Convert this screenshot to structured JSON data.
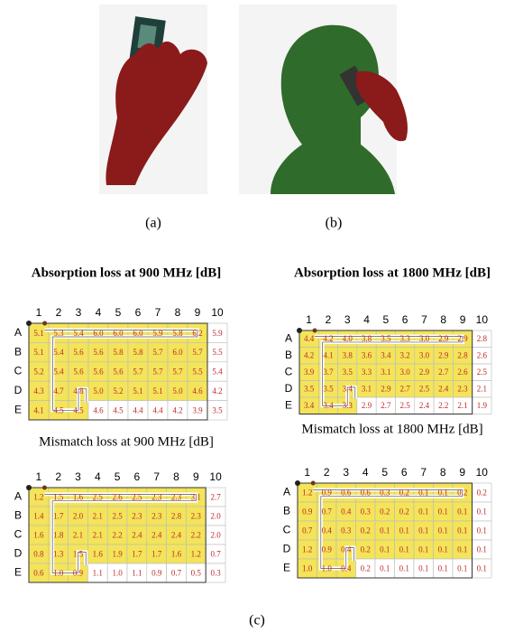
{
  "figure": {
    "panels": [
      {
        "label": "(a)"
      },
      {
        "label": "(b)"
      }
    ],
    "caption": "(c)"
  },
  "tables": [
    {
      "title": "Absorption loss at 900 MHz [dB]",
      "columns": [
        "1",
        "2",
        "3",
        "4",
        "5",
        "6",
        "7",
        "8",
        "9",
        "10"
      ],
      "rows": [
        {
          "label": "A",
          "cells": [
            "5.1",
            "5.3",
            "5.4",
            "6.0",
            "6.0",
            "6.0",
            "5.9",
            "5.8",
            "6.2",
            "5.9"
          ]
        },
        {
          "label": "B",
          "cells": [
            "5.1",
            "5.4",
            "5.6",
            "5.6",
            "5.8",
            "5.8",
            "5.7",
            "6.0",
            "5.7",
            "5.5"
          ]
        },
        {
          "label": "C",
          "cells": [
            "5.2",
            "5.4",
            "5.6",
            "5.6",
            "5.6",
            "5.7",
            "5.7",
            "5.7",
            "5.5",
            "5.4"
          ]
        },
        {
          "label": "D",
          "cells": [
            "4.3",
            "4.7",
            "4.8",
            "5.0",
            "5.2",
            "5.1",
            "5.1",
            "5.0",
            "4.6",
            "4.2"
          ]
        },
        {
          "label": "E",
          "cells": [
            "4.1",
            "4.5",
            "4.5",
            "4.6",
            "4.5",
            "4.4",
            "4.4",
            "4.2",
            "3.9",
            "3.5"
          ]
        }
      ]
    },
    {
      "title": "Absorption loss at 1800 MHz [dB]",
      "columns": [
        "1",
        "2",
        "3",
        "4",
        "5",
        "6",
        "7",
        "8",
        "9",
        "10"
      ],
      "rows": [
        {
          "label": "A",
          "cells": [
            "4.4",
            "4.2",
            "4.0",
            "3.8",
            "3.5",
            "3.3",
            "3.0",
            "2.9",
            "2.9",
            "2.8"
          ]
        },
        {
          "label": "B",
          "cells": [
            "4.2",
            "4.1",
            "3.8",
            "3.6",
            "3.4",
            "3.2",
            "3.0",
            "2.9",
            "2.8",
            "2.6"
          ]
        },
        {
          "label": "C",
          "cells": [
            "3.9",
            "3.7",
            "3.5",
            "3.3",
            "3.1",
            "3.0",
            "2.9",
            "2.7",
            "2.6",
            "2.5"
          ]
        },
        {
          "label": "D",
          "cells": [
            "3.5",
            "3.5",
            "3.4",
            "3.1",
            "2.9",
            "2.7",
            "2.5",
            "2.4",
            "2.3",
            "2.1"
          ]
        },
        {
          "label": "E",
          "cells": [
            "3.4",
            "3.4",
            "3.3",
            "2.9",
            "2.7",
            "2.5",
            "2.4",
            "2.2",
            "2.1",
            "1.9"
          ]
        }
      ]
    },
    {
      "title": "Mismatch loss at 900 MHz [dB]",
      "columns": [
        "1",
        "2",
        "3",
        "4",
        "5",
        "6",
        "7",
        "8",
        "9",
        "10"
      ],
      "rows": [
        {
          "label": "A",
          "cells": [
            "1.2",
            "1.5",
            "1.6",
            "2.5",
            "2.6",
            "2.5",
            "2.3",
            "2.3",
            "3.1",
            "2.7"
          ]
        },
        {
          "label": "B",
          "cells": [
            "1.4",
            "1.7",
            "2.0",
            "2.1",
            "2.5",
            "2.3",
            "2.3",
            "2.8",
            "2.3",
            "2.0"
          ]
        },
        {
          "label": "C",
          "cells": [
            "1.6",
            "1.8",
            "2.1",
            "2.1",
            "2.2",
            "2.4",
            "2.4",
            "2.4",
            "2.2",
            "2.0"
          ]
        },
        {
          "label": "D",
          "cells": [
            "0.8",
            "1.3",
            "1.5",
            "1.6",
            "1.9",
            "1.7",
            "1.7",
            "1.6",
            "1.2",
            "0.7"
          ]
        },
        {
          "label": "E",
          "cells": [
            "0.6",
            "1.0",
            "0.9",
            "1.1",
            "1.0",
            "1.1",
            "0.9",
            "0.7",
            "0.5",
            "0.3"
          ]
        }
      ]
    },
    {
      "title": "Mismatch loss at 1800 MHz [dB]",
      "columns": [
        "1",
        "2",
        "3",
        "4",
        "5",
        "6",
        "7",
        "8",
        "9",
        "10"
      ],
      "rows": [
        {
          "label": "A",
          "cells": [
            "1.2",
            "0.9",
            "0.6",
            "0.6",
            "0.3",
            "0.2",
            "0.1",
            "0.1",
            "0.2",
            "0.2"
          ]
        },
        {
          "label": "B",
          "cells": [
            "0.9",
            "0.7",
            "0.4",
            "0.3",
            "0.2",
            "0.2",
            "0.1",
            "0.1",
            "0.1",
            "0.1"
          ]
        },
        {
          "label": "C",
          "cells": [
            "0.7",
            "0.4",
            "0.3",
            "0.2",
            "0.1",
            "0.1",
            "0.1",
            "0.1",
            "0.1",
            "0.1"
          ]
        },
        {
          "label": "D",
          "cells": [
            "1.2",
            "0.9",
            "0.4",
            "0.2",
            "0.1",
            "0.1",
            "0.1",
            "0.1",
            "0.1",
            "0.1"
          ]
        },
        {
          "label": "E",
          "cells": [
            "1.0",
            "1.0",
            "0.4",
            "0.2",
            "0.1",
            "0.1",
            "0.1",
            "0.1",
            "0.1",
            "0.1"
          ]
        }
      ]
    }
  ]
}
